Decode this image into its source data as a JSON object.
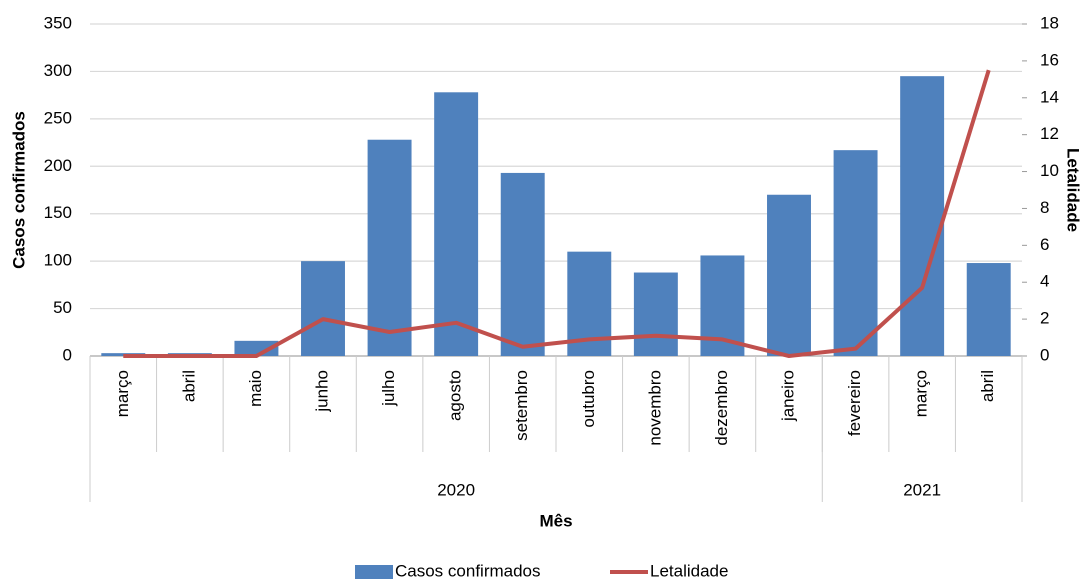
{
  "chart_data": {
    "type": "combo",
    "categories": [
      "março",
      "abril",
      "maio",
      "junho",
      "julho",
      "agosto",
      "setembro",
      "outubro",
      "novembro",
      "dezembro",
      "janeiro",
      "fevereiro",
      "março",
      "abril"
    ],
    "x_groups": [
      {
        "label": "2020",
        "count": 11
      },
      {
        "label": "2021",
        "count": 3
      }
    ],
    "xlabel": "Mês",
    "ylabel": "Casos confirmados",
    "y2label": "Letalidade",
    "ylim": [
      0,
      350
    ],
    "yticks": [
      0,
      50,
      100,
      150,
      200,
      250,
      300,
      350
    ],
    "y2lim": [
      0,
      18
    ],
    "y2ticks": [
      0,
      2,
      4,
      6,
      8,
      10,
      12,
      14,
      16,
      18
    ],
    "grid": true,
    "legend": "bottom",
    "series": [
      {
        "name": "Casos confirmados",
        "type": "bar",
        "color": "#4f81bd",
        "values": [
          3,
          3,
          16,
          100,
          228,
          278,
          193,
          110,
          88,
          106,
          170,
          217,
          295,
          98
        ]
      },
      {
        "name": "Letalidade",
        "type": "line",
        "axis": "y2",
        "color": "#c0504d",
        "values": [
          0,
          0,
          0,
          2.0,
          1.3,
          1.8,
          0.5,
          0.9,
          1.1,
          0.9,
          0,
          0.4,
          3.7,
          15.5
        ]
      }
    ]
  }
}
